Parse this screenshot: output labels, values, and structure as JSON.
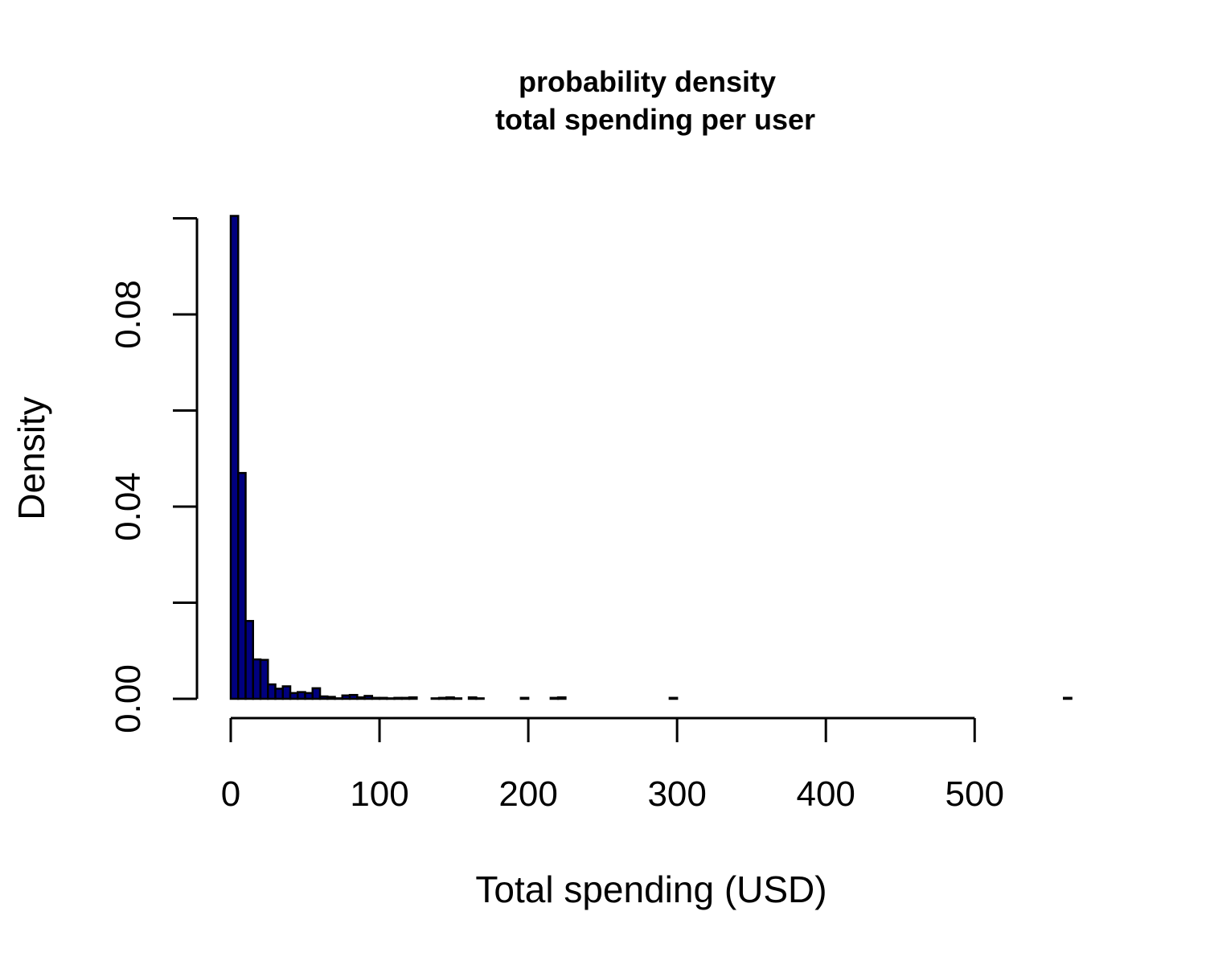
{
  "chart_data": {
    "type": "bar",
    "title": "probability density",
    "subtitle": "total spending per user",
    "xlabel": "Total spending (USD)",
    "ylabel": "Density",
    "xlim": [
      0,
      570
    ],
    "ylim": [
      0,
      0.1
    ],
    "x_ticks": [
      "0",
      "100",
      "200",
      "300",
      "400",
      "500"
    ],
    "y_ticks": [
      "0.00",
      "0.04",
      "0.08"
    ],
    "y_tick_values": [
      0,
      0.02,
      0.04,
      0.06,
      0.08,
      0.1
    ],
    "grid": false,
    "legend": "none",
    "bar_color": "#00007F",
    "bin_width": 5,
    "bins_start": [
      0,
      5,
      10,
      15,
      20,
      25,
      30,
      35,
      40,
      45,
      50,
      55,
      60,
      65,
      70,
      75,
      80,
      85,
      90,
      95,
      100,
      105,
      110,
      115,
      120,
      125,
      130,
      135,
      140,
      145,
      150,
      155,
      160,
      165,
      170,
      175,
      180,
      185,
      190,
      195,
      200,
      205,
      210,
      215,
      220,
      225,
      230,
      235,
      240,
      245,
      250,
      255,
      260,
      265,
      270,
      275,
      280,
      285,
      290,
      295,
      300,
      305,
      310,
      315,
      320,
      325,
      330,
      335,
      340,
      345,
      350,
      355,
      360,
      365,
      370,
      375,
      380,
      385,
      390,
      395,
      400,
      405,
      410,
      415,
      420,
      425,
      430,
      435,
      440,
      445,
      450,
      455,
      460,
      465,
      470,
      475,
      480,
      485,
      490,
      495,
      500,
      505,
      510,
      515,
      520,
      525,
      530,
      535,
      540,
      545,
      550,
      555,
      560
    ],
    "values": [
      0.1005,
      0.047,
      0.0162,
      0.0082,
      0.0081,
      0.003,
      0.0021,
      0.0026,
      0.0012,
      0.0014,
      0.0012,
      0.0022,
      0.0005,
      0.0004,
      0.0001,
      0.0007,
      0.0008,
      0.0003,
      0.0006,
      0.0002,
      0.0002,
      0.0001,
      0.0002,
      0.0002,
      0.0003,
      0.0,
      0.0,
      0.0001,
      0.0002,
      0.0003,
      0.0001,
      0.0,
      0.0003,
      0.0001,
      0.0,
      0.0,
      0.0,
      0.0,
      0.0,
      0.0002,
      0.0,
      0.0,
      0.0,
      0.0002,
      0.0003,
      0.0,
      0.0,
      0.0,
      0.0,
      0.0,
      0.0,
      0.0,
      0.0,
      0.0,
      0.0,
      0.0,
      0.0,
      0.0,
      0.0,
      0.0002,
      0.0,
      0.0,
      0.0,
      0.0,
      0.0,
      0.0,
      0.0,
      0.0,
      0.0,
      0.0,
      0.0,
      0.0,
      0.0,
      0.0,
      0.0,
      0.0,
      0.0,
      0.0,
      0.0,
      0.0,
      0.0,
      0.0,
      0.0,
      0.0,
      0.0,
      0.0,
      0.0,
      0.0,
      0.0,
      0.0,
      0.0,
      0.0,
      0.0,
      0.0,
      0.0,
      0.0,
      0.0,
      0.0,
      0.0,
      0.0,
      0.0,
      0.0,
      0.0,
      0.0,
      0.0,
      0.0,
      0.0,
      0.0,
      0.0,
      0.0,
      0.0,
      0.0,
      0.0002
    ]
  }
}
